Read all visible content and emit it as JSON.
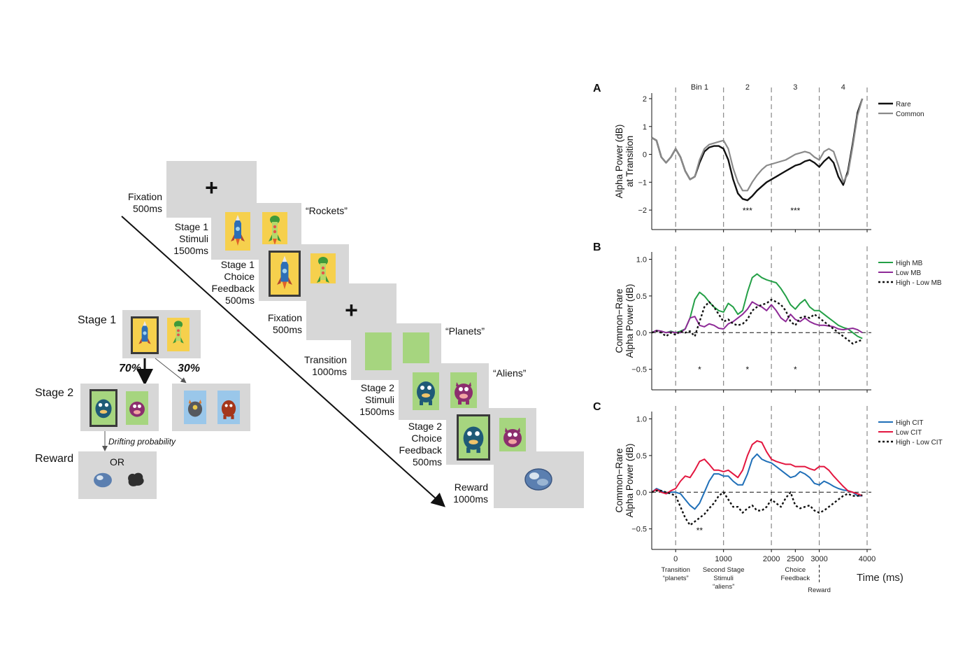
{
  "left_panel": {
    "timeline": [
      {
        "name": "Fixation",
        "duration": "500ms"
      },
      {
        "name": "Stage 1",
        "name2": "Stimuli",
        "duration": "1500ms",
        "quote": "“Rockets”"
      },
      {
        "name": "Stage 1",
        "name2": "Choice",
        "name3": "Feedback",
        "duration": "500ms"
      },
      {
        "name": "Fixation",
        "duration": "500ms"
      },
      {
        "name": "Transition",
        "duration": "1000ms",
        "quote": "“Planets”"
      },
      {
        "name": "Stage 2",
        "name2": "Stimuli",
        "duration": "1500ms",
        "quote": "“Aliens”"
      },
      {
        "name": "Stage 2",
        "name2": "Choice",
        "name3": "Feedback",
        "duration": "500ms"
      },
      {
        "name": "Reward",
        "duration": "1000ms"
      }
    ],
    "fixation_symbol": "+",
    "task": {
      "stage1_label": "Stage 1",
      "stage2_label": "Stage 2",
      "reward_label": "Reward",
      "common_prob": "70%",
      "rare_prob": "30%",
      "drift_label": "Drifting probability",
      "or_label": "OR"
    },
    "colors": {
      "rocket_bg": "#f6d04d",
      "planet_bg": "#a6d57f",
      "alien_bg": "#9ac7ea",
      "screen": "#d7d7d7"
    }
  },
  "right_panel": {
    "time_label": "Time (ms)",
    "bin_labels": [
      "Bin 1",
      "2",
      "3",
      "4"
    ],
    "x_ticks": [
      "0",
      "1000",
      "2000",
      "2500",
      "3000",
      "4000"
    ],
    "events": [
      {
        "line1": "Transition",
        "line2": "“planets”"
      },
      {
        "line1": "Second Stage",
        "line2": "Stimuli",
        "line3": "“aliens”"
      },
      {
        "line1": "Choice",
        "line2": "Feedback"
      },
      {
        "line1": "Reward"
      }
    ],
    "panels": [
      {
        "letter": "A",
        "ylabel1": "Alpha Power (dB)",
        "ylabel2": "at Transition",
        "y_ticks": [
          "2",
          "1",
          "0",
          "−1",
          "−2"
        ],
        "legend": [
          "Rare",
          "Common"
        ],
        "sig": [
          "***",
          "***"
        ]
      },
      {
        "letter": "B",
        "ylabel1": "Common−Rare",
        "ylabel2": "Alpha Power (dB)",
        "y_ticks": [
          "1.0",
          "0.5",
          "0.0",
          "−0.5"
        ],
        "legend": [
          "High MB",
          "Low MB",
          "High - Low MB"
        ],
        "sig": [
          "*",
          "*",
          "*"
        ]
      },
      {
        "letter": "C",
        "ylabel1": "Common−Rare",
        "ylabel2": "Alpha Power (dB)",
        "y_ticks": [
          "1.0",
          "0.5",
          "0.0",
          "−0.5"
        ],
        "legend": [
          "High CIT",
          "Low CIT",
          "High - Low CIT"
        ],
        "sig": [
          "**"
        ]
      }
    ],
    "chart_data": [
      {
        "type": "line",
        "title": "A",
        "xlabel": "Time (ms)",
        "ylabel": "Alpha Power (dB) at Transition",
        "xlim": [
          -500,
          4000
        ],
        "ylim": [
          -2.7,
          2.2
        ],
        "series": [
          {
            "name": "Rare",
            "color": "#111111",
            "width": 2.4,
            "dash": "",
            "x": [
              -500,
              -400,
              -300,
              -200,
              -100,
              0,
              100,
              200,
              300,
              400,
              500,
              600,
              700,
              800,
              900,
              1000,
              1100,
              1200,
              1300,
              1400,
              1500,
              1600,
              1700,
              1800,
              1900,
              2000,
              2100,
              2200,
              2300,
              2400,
              2500,
              2600,
              2700,
              2800,
              2900,
              3000,
              3100,
              3200,
              3300,
              3400,
              3500,
              3600,
              3700,
              3800,
              3900
            ],
            "y": [
              0.6,
              0.5,
              -0.1,
              -0.3,
              -0.1,
              0.2,
              -0.1,
              -0.6,
              -0.9,
              -0.8,
              -0.3,
              0.1,
              0.25,
              0.3,
              0.3,
              0.2,
              -0.2,
              -0.9,
              -1.4,
              -1.6,
              -1.65,
              -1.5,
              -1.3,
              -1.15,
              -1.0,
              -0.9,
              -0.8,
              -0.7,
              -0.6,
              -0.5,
              -0.4,
              -0.35,
              -0.25,
              -0.2,
              -0.3,
              -0.45,
              -0.25,
              -0.1,
              -0.3,
              -0.8,
              -1.1,
              -0.6,
              0.4,
              1.5,
              2.0
            ]
          },
          {
            "name": "Common",
            "color": "#8a8a8a",
            "width": 2.2,
            "dash": "",
            "x": [
              -500,
              -400,
              -300,
              -200,
              -100,
              0,
              100,
              200,
              300,
              400,
              500,
              600,
              700,
              800,
              900,
              1000,
              1100,
              1200,
              1300,
              1400,
              1500,
              1600,
              1700,
              1800,
              1900,
              2000,
              2100,
              2200,
              2300,
              2400,
              2500,
              2600,
              2700,
              2800,
              2900,
              3000,
              3100,
              3200,
              3300,
              3400,
              3500,
              3600,
              3700,
              3800,
              3900
            ],
            "y": [
              0.6,
              0.5,
              -0.1,
              -0.3,
              -0.1,
              0.2,
              -0.1,
              -0.6,
              -0.9,
              -0.8,
              -0.2,
              0.2,
              0.35,
              0.4,
              0.45,
              0.5,
              0.2,
              -0.5,
              -1.0,
              -1.3,
              -1.3,
              -1.0,
              -0.75,
              -0.55,
              -0.4,
              -0.35,
              -0.3,
              -0.25,
              -0.2,
              -0.1,
              0.0,
              0.05,
              0.1,
              0.05,
              -0.1,
              -0.2,
              0.1,
              0.2,
              0.1,
              -0.4,
              -1.0,
              -0.7,
              0.3,
              1.4,
              2.0
            ]
          }
        ]
      },
      {
        "type": "line",
        "title": "B",
        "xlabel": "Time (ms)",
        "ylabel": "Common−Rare Alpha Power (dB)",
        "xlim": [
          -500,
          4000
        ],
        "ylim": [
          -0.78,
          1.1
        ],
        "series": [
          {
            "name": "High MB",
            "color": "#24a047",
            "width": 2,
            "dash": "",
            "x": [
              -500,
              -400,
              -300,
              -200,
              -100,
              0,
              100,
              200,
              300,
              400,
              500,
              600,
              700,
              800,
              900,
              1000,
              1100,
              1200,
              1300,
              1400,
              1500,
              1600,
              1700,
              1800,
              1900,
              2000,
              2100,
              2200,
              2300,
              2400,
              2500,
              2600,
              2700,
              2800,
              2900,
              3000,
              3100,
              3200,
              3300,
              3400,
              3500,
              3600,
              3700,
              3800,
              3900
            ],
            "y": [
              0.0,
              0.03,
              0.02,
              0.0,
              0.02,
              0.0,
              0.02,
              0.05,
              0.2,
              0.45,
              0.55,
              0.5,
              0.42,
              0.35,
              0.3,
              0.28,
              0.4,
              0.35,
              0.25,
              0.3,
              0.55,
              0.75,
              0.8,
              0.75,
              0.72,
              0.7,
              0.68,
              0.6,
              0.5,
              0.38,
              0.32,
              0.4,
              0.45,
              0.35,
              0.3,
              0.3,
              0.25,
              0.2,
              0.15,
              0.1,
              0.07,
              0.05,
              0.0,
              -0.05,
              -0.08
            ]
          },
          {
            "name": "Low MB",
            "color": "#8e2a97",
            "width": 2,
            "dash": "",
            "x": [
              -500,
              -400,
              -300,
              -200,
              -100,
              0,
              100,
              200,
              300,
              400,
              500,
              600,
              700,
              800,
              900,
              1000,
              1100,
              1200,
              1300,
              1400,
              1500,
              1600,
              1700,
              1800,
              1900,
              2000,
              2100,
              2200,
              2300,
              2400,
              2500,
              2600,
              2700,
              2800,
              2900,
              3000,
              3100,
              3200,
              3300,
              3400,
              3500,
              3600,
              3700,
              3800,
              3900
            ],
            "y": [
              0.0,
              0.03,
              0.02,
              0.0,
              0.01,
              0.0,
              0.0,
              0.05,
              0.2,
              0.22,
              0.1,
              0.08,
              0.12,
              0.1,
              0.06,
              0.05,
              0.12,
              0.15,
              0.2,
              0.25,
              0.32,
              0.42,
              0.38,
              0.35,
              0.3,
              0.38,
              0.3,
              0.2,
              0.15,
              0.25,
              0.18,
              0.15,
              0.2,
              0.15,
              0.12,
              0.1,
              0.1,
              0.09,
              0.08,
              0.05,
              0.04,
              0.05,
              0.06,
              0.04,
              0.0
            ]
          },
          {
            "name": "High - Low MB",
            "color": "#111111",
            "width": 2.4,
            "dash": "3,3",
            "x": [
              -500,
              -400,
              -300,
              -200,
              -100,
              0,
              100,
              200,
              300,
              400,
              500,
              600,
              700,
              800,
              900,
              1000,
              1100,
              1200,
              1300,
              1400,
              1500,
              1600,
              1700,
              1800,
              1900,
              2000,
              2100,
              2200,
              2300,
              2400,
              2500,
              2600,
              2700,
              2800,
              2900,
              3000,
              3100,
              3200,
              3300,
              3400,
              3500,
              3600,
              3700,
              3800,
              3900
            ],
            "y": [
              0.0,
              0.02,
              0.0,
              -0.05,
              0.0,
              -0.03,
              0.02,
              0.0,
              0.02,
              -0.05,
              0.15,
              0.35,
              0.42,
              0.35,
              0.25,
              0.15,
              0.18,
              0.12,
              0.1,
              0.12,
              0.18,
              0.3,
              0.35,
              0.38,
              0.4,
              0.45,
              0.42,
              0.38,
              0.3,
              0.15,
              0.1,
              0.2,
              0.22,
              0.2,
              0.25,
              0.2,
              0.15,
              0.1,
              0.05,
              0.0,
              -0.05,
              -0.1,
              -0.15,
              -0.12,
              -0.1
            ]
          }
        ]
      },
      {
        "type": "line",
        "title": "C",
        "xlabel": "Time (ms)",
        "ylabel": "Common−Rare Alpha Power (dB)",
        "xlim": [
          -500,
          4000
        ],
        "ylim": [
          -0.78,
          1.1
        ],
        "series": [
          {
            "name": "High CIT",
            "color": "#1f6fb8",
            "width": 2,
            "dash": "",
            "x": [
              -500,
              -400,
              -300,
              -200,
              -100,
              0,
              100,
              200,
              300,
              400,
              500,
              600,
              700,
              800,
              900,
              1000,
              1100,
              1200,
              1300,
              1400,
              1500,
              1600,
              1700,
              1800,
              1900,
              2000,
              2100,
              2200,
              2300,
              2400,
              2500,
              2600,
              2700,
              2800,
              2900,
              3000,
              3100,
              3200,
              3300,
              3400,
              3500,
              3600,
              3700,
              3800,
              3900
            ],
            "y": [
              0.0,
              0.05,
              0.02,
              -0.02,
              0.0,
              0.0,
              -0.02,
              -0.1,
              -0.18,
              -0.23,
              -0.15,
              0.0,
              0.15,
              0.25,
              0.25,
              0.22,
              0.22,
              0.15,
              0.1,
              0.1,
              0.25,
              0.45,
              0.52,
              0.45,
              0.42,
              0.4,
              0.35,
              0.3,
              0.25,
              0.2,
              0.22,
              0.28,
              0.25,
              0.2,
              0.12,
              0.1,
              0.15,
              0.12,
              0.08,
              0.05,
              0.03,
              0.02,
              0.0,
              -0.05,
              -0.05
            ]
          },
          {
            "name": "Low CIT",
            "color": "#e3163f",
            "width": 2,
            "dash": "",
            "x": [
              -500,
              -400,
              -300,
              -200,
              -100,
              0,
              100,
              200,
              300,
              400,
              500,
              600,
              700,
              800,
              900,
              1000,
              1100,
              1200,
              1300,
              1400,
              1500,
              1600,
              1700,
              1800,
              1900,
              2000,
              2100,
              2200,
              2300,
              2400,
              2500,
              2600,
              2700,
              2800,
              2900,
              3000,
              3100,
              3200,
              3300,
              3400,
              3500,
              3600,
              3700,
              3800,
              3900
            ],
            "y": [
              0.0,
              0.04,
              0.0,
              -0.02,
              0.02,
              0.05,
              0.15,
              0.22,
              0.2,
              0.3,
              0.42,
              0.45,
              0.38,
              0.3,
              0.3,
              0.28,
              0.3,
              0.25,
              0.2,
              0.3,
              0.5,
              0.65,
              0.7,
              0.68,
              0.55,
              0.45,
              0.42,
              0.4,
              0.38,
              0.38,
              0.35,
              0.35,
              0.35,
              0.32,
              0.3,
              0.35,
              0.35,
              0.3,
              0.22,
              0.15,
              0.08,
              0.02,
              0.0,
              -0.02,
              -0.05
            ]
          },
          {
            "name": "High - Low CIT",
            "color": "#111111",
            "width": 2.4,
            "dash": "3,3",
            "x": [
              -500,
              -400,
              -300,
              -200,
              -100,
              0,
              100,
              200,
              300,
              400,
              500,
              600,
              700,
              800,
              900,
              1000,
              1100,
              1200,
              1300,
              1400,
              1500,
              1600,
              1700,
              1800,
              1900,
              2000,
              2100,
              2200,
              2300,
              2400,
              2500,
              2600,
              2700,
              2800,
              2900,
              3000,
              3100,
              3200,
              3300,
              3400,
              3500,
              3600,
              3700,
              3800,
              3900
            ],
            "y": [
              0.0,
              0.02,
              0.02,
              0.0,
              -0.02,
              -0.05,
              -0.2,
              -0.35,
              -0.45,
              -0.4,
              -0.35,
              -0.3,
              -0.22,
              -0.15,
              -0.05,
              0.0,
              -0.1,
              -0.2,
              -0.2,
              -0.28,
              -0.22,
              -0.18,
              -0.25,
              -0.25,
              -0.2,
              -0.1,
              -0.15,
              -0.2,
              -0.08,
              0.0,
              -0.18,
              -0.22,
              -0.2,
              -0.18,
              -0.25,
              -0.28,
              -0.25,
              -0.2,
              -0.15,
              -0.1,
              -0.05,
              -0.02,
              -0.05,
              -0.05,
              -0.04
            ]
          }
        ]
      }
    ]
  }
}
